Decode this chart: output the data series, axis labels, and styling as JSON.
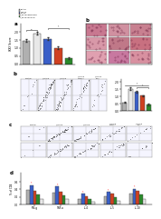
{
  "bg_color": "#ffffff",
  "legend_labels": [
    "Control",
    "L_BAPB",
    "Saline",
    "L_BAPB PBMC+BCCI",
    "L_BAPB CD7-BCCI"
  ],
  "legend_colors": [
    "#b0b0b0",
    "#e8e8e8",
    "#3a5fc8",
    "#d04020",
    "#2a8a2a"
  ],
  "panel_a_bars": [
    1.45,
    1.88,
    1.55,
    1.0,
    0.38
  ],
  "panel_a_errors": [
    0.07,
    0.09,
    0.09,
    0.07,
    0.04
  ],
  "panel_a_colors": [
    "#b0b0b0",
    "#e8e8e8",
    "#3a5fc8",
    "#d04020",
    "#2a8a2a"
  ],
  "panel_a_ylabel": "IKKY Score",
  "panel_b_bars": [
    0.6,
    1.55,
    1.35,
    1.05,
    0.45
  ],
  "panel_b_errors": [
    0.04,
    0.08,
    0.07,
    0.06,
    0.04
  ],
  "panel_b_colors": [
    "#b0b0b0",
    "#e8e8e8",
    "#3a5fc8",
    "#d04020",
    "#2a8a2a"
  ],
  "flow_pcts_b": [
    "1.2",
    "25.3",
    "18.7",
    "11.4",
    "4.8"
  ],
  "panel_d_groups": [
    "IFN-g",
    "TNF-a",
    "IL-4",
    "IL-5",
    "IL-10"
  ],
  "panel_d_values": [
    [
      0.38,
      0.32,
      0.14,
      0.22,
      0.28
    ],
    [
      0.52,
      0.48,
      0.28,
      0.33,
      0.42
    ],
    [
      0.36,
      0.35,
      0.22,
      0.28,
      0.36
    ],
    [
      0.26,
      0.25,
      0.15,
      0.2,
      0.26
    ],
    [
      0.13,
      0.13,
      0.07,
      0.1,
      0.13
    ]
  ],
  "panel_d_colors": [
    "#b0b0b0",
    "#3a5fc8",
    "#d04020",
    "#2a8a2a",
    "#e8e8e8"
  ],
  "histology_colors": [
    [
      "#c87890",
      "#d090a0",
      "#c88090"
    ],
    [
      "#d898a8",
      "#c07888",
      "#c87080"
    ],
    [
      "#e0a0b0",
      "#c878a0",
      "#d890a0"
    ]
  ]
}
